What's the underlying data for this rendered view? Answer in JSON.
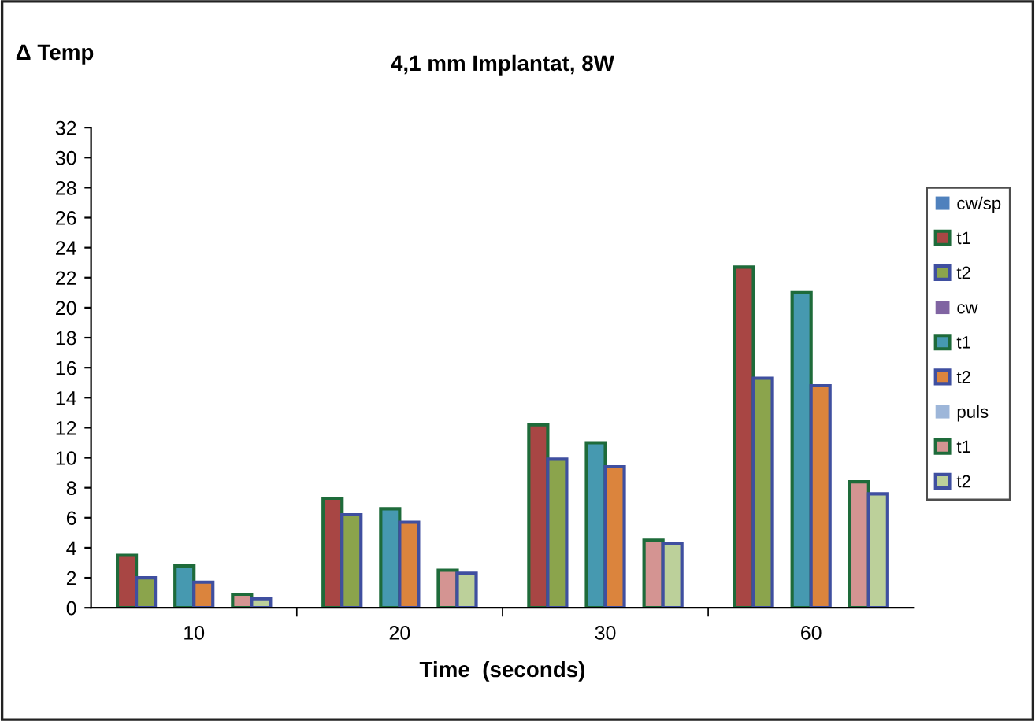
{
  "chart_data": {
    "type": "bar",
    "title": "4,1 mm Implantat, 8W",
    "xlabel": "Time  (seconds)",
    "ylabel": "Δ Temp",
    "categories": [
      "10",
      "20",
      "30",
      "60"
    ],
    "series": [
      {
        "name": "t1",
        "color": "#a84644",
        "values": [
          3.5,
          7.3,
          12.2,
          22.7
        ]
      },
      {
        "name": "t2",
        "color": "#8ba44c",
        "values": [
          2.0,
          6.2,
          9.9,
          15.3
        ]
      },
      {
        "name": "t1",
        "color": "#4699b0",
        "values": [
          2.8,
          6.6,
          11.0,
          21.0
        ]
      },
      {
        "name": "t2",
        "color": "#db843d",
        "values": [
          1.7,
          5.7,
          9.4,
          14.8
        ]
      },
      {
        "name": "t1",
        "color": "#d49492",
        "values": [
          0.9,
          2.5,
          4.5,
          8.4
        ]
      },
      {
        "name": "t2",
        "color": "#bcd09a",
        "values": [
          0.6,
          2.3,
          4.3,
          7.6
        ]
      }
    ],
    "annotations": [
      "cw/sp",
      "cw",
      "puls"
    ],
    "ylim": [
      0,
      32
    ],
    "yticks": [
      0,
      2,
      4,
      6,
      8,
      10,
      12,
      14,
      16,
      18,
      20,
      22,
      24,
      26,
      28,
      30,
      32
    ],
    "grid": false,
    "legend": "right"
  }
}
